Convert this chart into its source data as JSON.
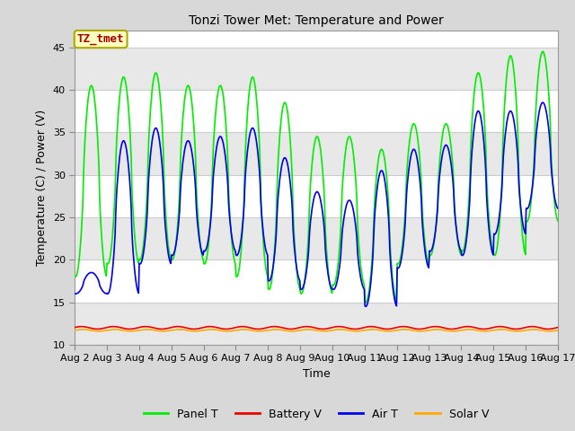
{
  "title": "Tonzi Tower Met: Temperature and Power",
  "xlabel": "Time",
  "ylabel": "Temperature (C) / Power (V)",
  "ylim": [
    10,
    47
  ],
  "xlim": [
    0,
    15
  ],
  "fig_bg_color": "#d8d8d8",
  "plot_bg_color": "#ffffff",
  "stripe_color": "#e8e8e8",
  "grid_color": "#cccccc",
  "label_box": "TZ_tmet",
  "label_box_color": "#ffffc0",
  "label_box_text_color": "#aa0000",
  "label_box_edge_color": "#aaaa00",
  "xtick_labels": [
    "Aug 2",
    "Aug 3",
    "Aug 4",
    "Aug 5",
    "Aug 6",
    "Aug 7",
    "Aug 8",
    "Aug 9",
    "Aug 10",
    "Aug 11",
    "Aug 12",
    "Aug 13",
    "Aug 14",
    "Aug 15",
    "Aug 16",
    "Aug 17"
  ],
  "xtick_positions": [
    0,
    1,
    2,
    3,
    4,
    5,
    6,
    7,
    8,
    9,
    10,
    11,
    12,
    13,
    14,
    15
  ],
  "ytick_positions": [
    10,
    15,
    20,
    25,
    30,
    35,
    40,
    45
  ],
  "panel_T_color": "#00ee00",
  "air_T_color": "#0000ee",
  "battery_V_color": "#ee0000",
  "solar_V_color": "#ffaa00",
  "lw": 1.2,
  "legend_entries": [
    "Panel T",
    "Battery V",
    "Air T",
    "Solar V"
  ],
  "legend_colors": [
    "#00ee00",
    "#ee0000",
    "#0000ee",
    "#ffaa00"
  ],
  "title_fontsize": 10,
  "axis_fontsize": 9,
  "tick_fontsize": 8
}
